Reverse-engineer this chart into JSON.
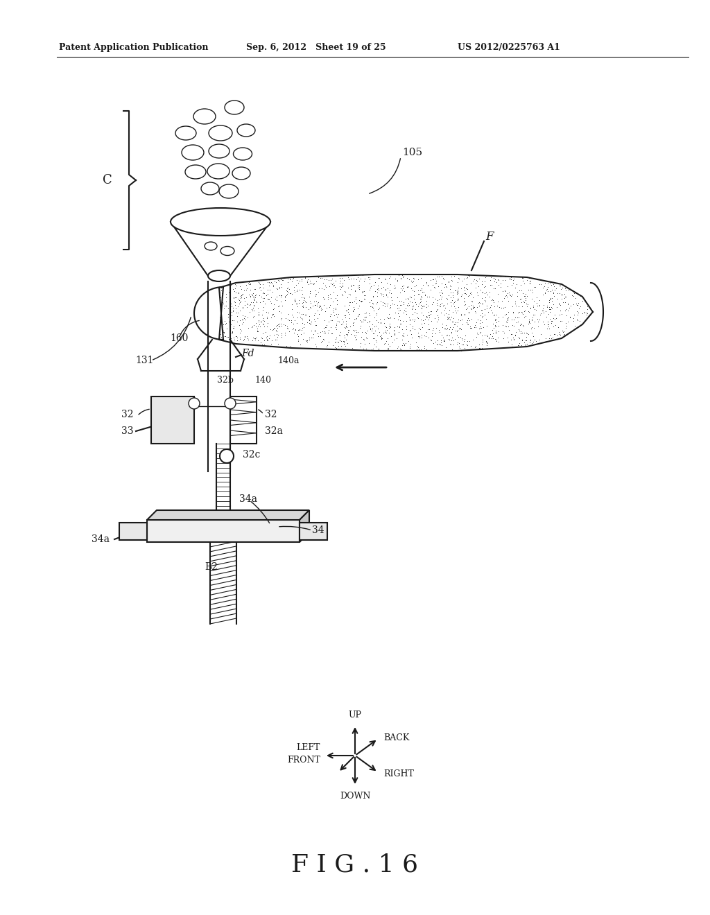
{
  "header_left": "Patent Application Publication",
  "header_mid": "Sep. 6, 2012   Sheet 19 of 25",
  "header_right": "US 2012/0225763 A1",
  "figure_label": "F I G . 1 6",
  "bg_color": "#ffffff",
  "line_color": "#1a1a1a"
}
